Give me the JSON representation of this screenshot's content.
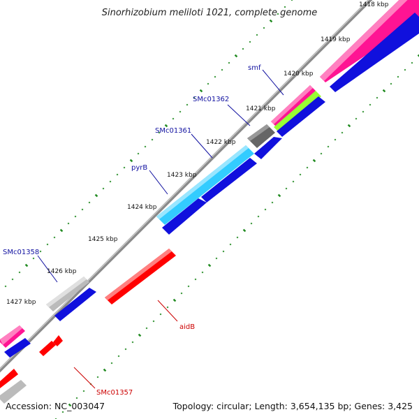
{
  "title": "Sinorhizobium meliloti 1021, complete genome",
  "footer": {
    "accession": "Accession: NC_003047",
    "summary": "Topology: circular; Length: 3,654,135 bp; Genes: 3,425"
  },
  "kbp_labels": [
    "1418 kbp",
    "1419 kbp",
    "1420 kbp",
    "1421 kbp",
    "1422 kbp",
    "1423 kbp",
    "1424 kbp",
    "1425 kbp",
    "1426 kbp",
    "1427 kbp"
  ],
  "gene_labels": {
    "smf": "smf",
    "SMc01362": "SMc01362",
    "SMc01361": "SMc01361",
    "pyrB": "pyrB",
    "SMc01358": "SMc01358",
    "aidB": "aidB",
    "SMc01357": "SMc01357"
  },
  "colors": {
    "backbone": "#8a8a8a",
    "cds": "#1010dd",
    "pink": "#ff1493",
    "green": "#99ff33",
    "cyan": "#33ccff",
    "gray_dark": "#666666",
    "gray_light": "#bbbbbb",
    "reverse": "#ff0000",
    "forward_label": "#1010a0",
    "reverse_label": "#cc0000",
    "ticks": "#228b22"
  }
}
